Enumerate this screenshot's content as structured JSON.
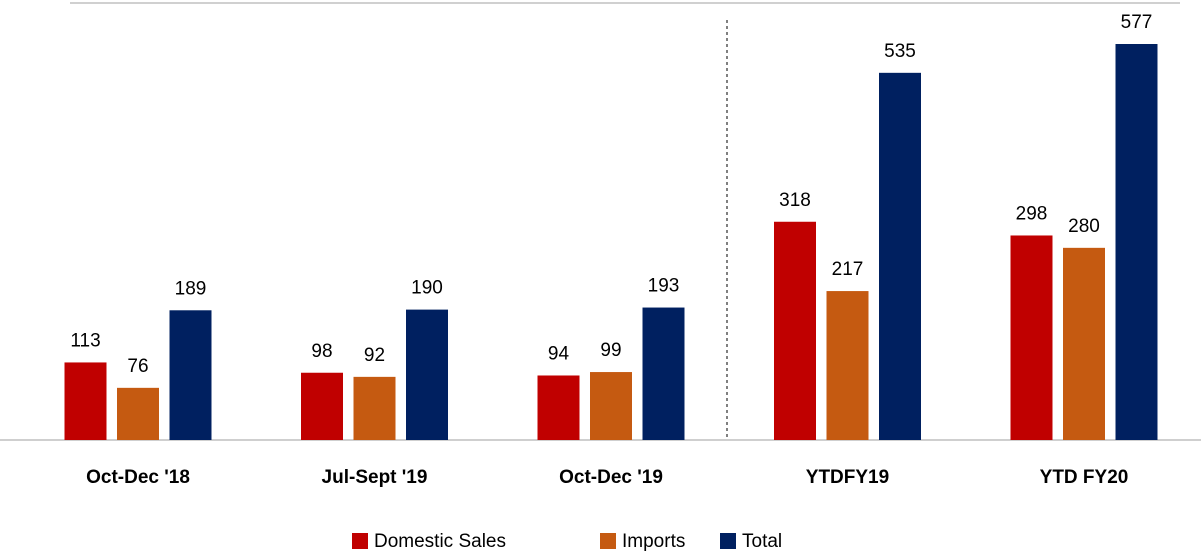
{
  "chart_data": {
    "type": "bar",
    "categories": [
      "Oct-Dec '18",
      "Jul-Sept '19",
      "Oct-Dec '19",
      "YTDFY19",
      "YTD FY20"
    ],
    "series": [
      {
        "name": "Domestic Sales",
        "color": "#c00000",
        "values": [
          113,
          98,
          94,
          318,
          298
        ]
      },
      {
        "name": "Imports",
        "color": "#c55a11",
        "values": [
          76,
          92,
          99,
          217,
          280
        ]
      },
      {
        "name": "Total",
        "color": "#002060",
        "values": [
          189,
          190,
          193,
          535,
          577
        ]
      }
    ],
    "legend": "bottom"
  }
}
